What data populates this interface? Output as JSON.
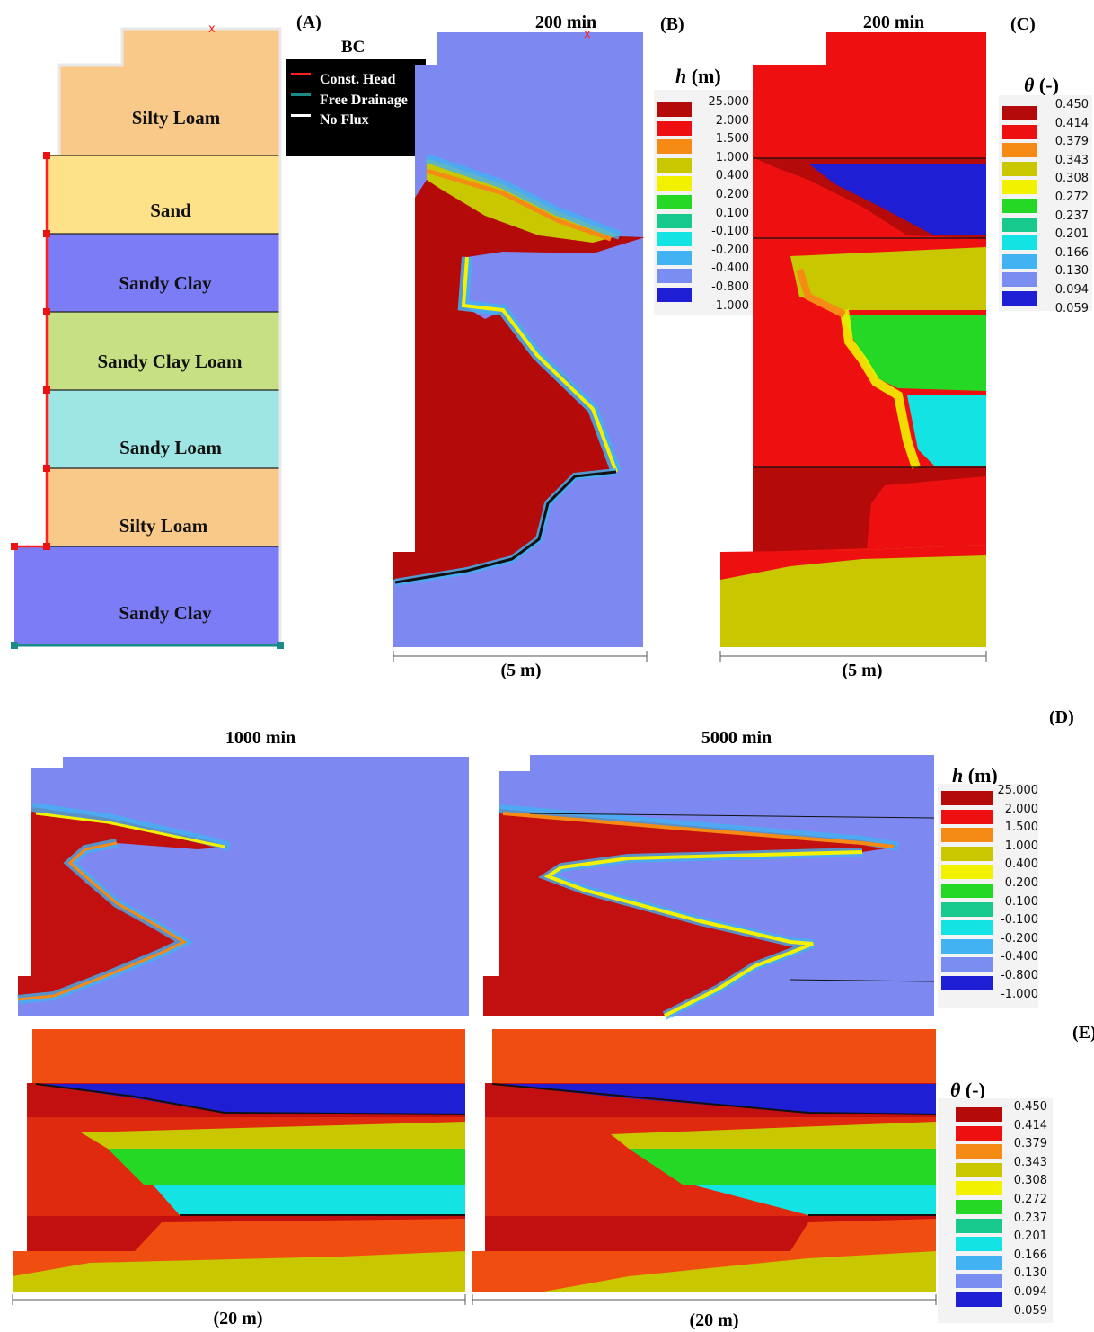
{
  "panels": {
    "A": {
      "label": "(A)",
      "layers": [
        "Silty Loam",
        "Sand",
        "Sandy Clay",
        "Sandy Clay Loam",
        "Sandy Loam",
        "Silty Loam",
        "Sandy Clay"
      ],
      "layer_colors": [
        "#f9c98a",
        "#fde28a",
        "#7c7cf6",
        "#c7e083",
        "#9ee6e4",
        "#f9c98a",
        "#7c7cf6"
      ]
    },
    "bc_legend": {
      "title": "BC",
      "items": [
        {
          "label": "Const. Head",
          "color": "#ff2020"
        },
        {
          "label": "Free Drainage",
          "color": "#1a8a86"
        },
        {
          "label": "No Flux",
          "color": "#ffffff"
        }
      ]
    },
    "B": {
      "label": "(B)",
      "time": "200 min",
      "scale": "(5 m)"
    },
    "C": {
      "label": "(C)",
      "time": "200 min",
      "scale": "(5 m)"
    },
    "D": {
      "label": "(D)",
      "time_left": "1000 min",
      "time_right": "5000 min"
    },
    "E": {
      "label": "(E)",
      "scale_left": "(20 m)",
      "scale_right": "(20 m)"
    }
  },
  "legend_h": {
    "title_var": "h",
    "title_unit": "(m)",
    "values": [
      "25.000",
      "2.000",
      "1.500",
      "1.000",
      "0.400",
      "0.200",
      "0.100",
      "-0.100",
      "-0.200",
      "-0.400",
      "-0.800",
      "-1.000"
    ],
    "colors": [
      "#b40a0a",
      "#ee1010",
      "#f58a15",
      "#c9c800",
      "#f2f200",
      "#26d826",
      "#17c98d",
      "#13e3e3",
      "#42b2f2",
      "#7a8ef2",
      "#1e1ed4"
    ]
  },
  "legend_theta": {
    "title_var": "θ",
    "title_unit": "(-)",
    "values": [
      "0.450",
      "0.414",
      "0.379",
      "0.343",
      "0.308",
      "0.272",
      "0.237",
      "0.201",
      "0.166",
      "0.130",
      "0.094",
      "0.059"
    ],
    "colors": [
      "#b40a0a",
      "#ee1010",
      "#f58a15",
      "#c9c800",
      "#f2f200",
      "#26d826",
      "#17c98d",
      "#13e3e3",
      "#42b2f2",
      "#7a8ef2",
      "#1e1ed4"
    ]
  }
}
